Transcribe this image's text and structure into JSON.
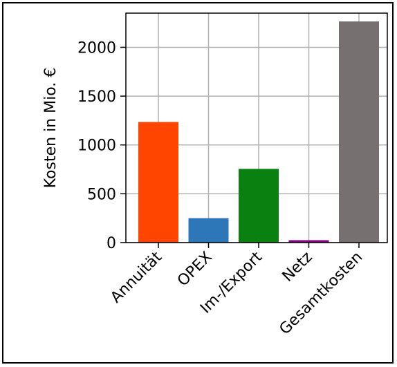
{
  "chart_data": {
    "type": "bar",
    "categories": [
      "Annuität",
      "OPEX",
      "Im-/Export",
      "Netz",
      "Gesamtkosten"
    ],
    "values": [
      1235,
      250,
      755,
      25,
      2265
    ],
    "colors": [
      "#ff4500",
      "#2d77b8",
      "#0a8010",
      "#8b008b",
      "#767170"
    ],
    "ylabel": "Kosten in Mio. €",
    "ylim": [
      0,
      2350
    ],
    "yticks": [
      0,
      500,
      1000,
      1500,
      2000
    ],
    "grid": true
  }
}
